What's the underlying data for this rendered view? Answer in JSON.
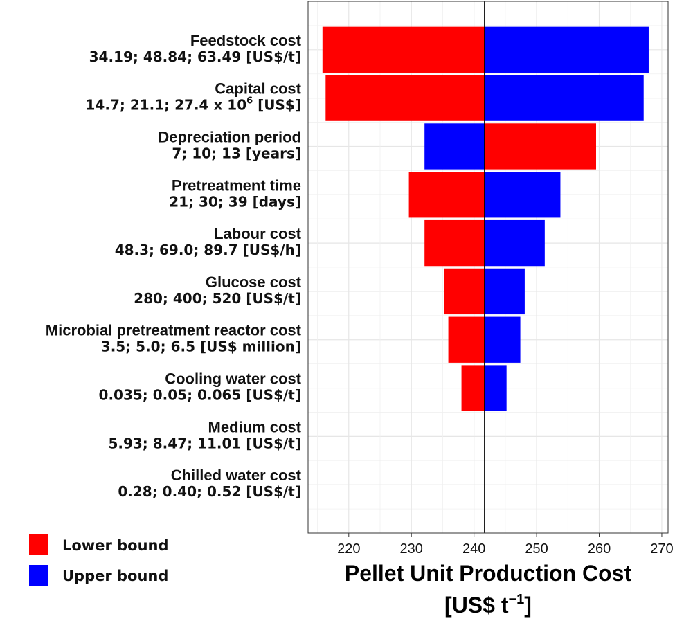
{
  "chart_data": {
    "type": "bar",
    "orientation": "horizontal-tornado",
    "baseline": 241.7,
    "xlim": [
      213.5,
      271
    ],
    "xticks": [
      "220",
      "230",
      "240",
      "250",
      "260",
      "270"
    ],
    "xlabel_line1": "Pellet Unit Production Cost",
    "xlabel_line2": "[US$ t",
    "xlabel_line2_sup": "−1",
    "xlabel_line2_end": "]",
    "grid": true,
    "legend_placement": "bottom-left",
    "series": [
      {
        "name": "Lower bound",
        "color": "#ff0000"
      },
      {
        "name": "Upper bound",
        "color": "#0000ff"
      }
    ],
    "categories": [
      {
        "name": "Feedstock cost",
        "range_label": "34.19; 48.84; 63.49 [US$/t]",
        "bars": [
          {
            "series": "Lower bound",
            "from": 241.7,
            "to": 215.8
          },
          {
            "series": "Upper bound",
            "from": 241.7,
            "to": 267.9
          }
        ]
      },
      {
        "name": "Capital cost",
        "range_label": "14.7; 21.1; 27.4 x 10",
        "range_sup": "6",
        "range_suffix": " [US$]",
        "bars": [
          {
            "series": "Lower bound",
            "from": 241.7,
            "to": 216.3
          },
          {
            "series": "Upper bound",
            "from": 241.7,
            "to": 267.1
          }
        ]
      },
      {
        "name": "Depreciation period",
        "range_label": "7; 10; 13 [years]",
        "bars": [
          {
            "series": "Upper bound",
            "from": 241.7,
            "to": 232.1
          },
          {
            "series": "Lower bound",
            "from": 241.7,
            "to": 259.5
          }
        ]
      },
      {
        "name": "Pretreatment time",
        "range_label": "21; 30; 39 [days]",
        "bars": [
          {
            "series": "Lower bound",
            "from": 241.7,
            "to": 229.6
          },
          {
            "series": "Upper bound",
            "from": 241.7,
            "to": 253.8
          }
        ]
      },
      {
        "name": "Labour cost",
        "range_label": "48.3; 69.0; 89.7 [US$/h]",
        "bars": [
          {
            "series": "Lower bound",
            "from": 241.7,
            "to": 232.1
          },
          {
            "series": "Upper bound",
            "from": 241.7,
            "to": 251.3
          }
        ]
      },
      {
        "name": "Glucose cost",
        "range_label": "280; 400; 520 [US$/t]",
        "bars": [
          {
            "series": "Lower bound",
            "from": 241.7,
            "to": 235.2
          },
          {
            "series": "Upper bound",
            "from": 241.7,
            "to": 248.1
          }
        ]
      },
      {
        "name": "Microbial pretreatment reactor cost",
        "range_label": "3.5; 5.0; 6.5 [US$ million]",
        "bars": [
          {
            "series": "Lower bound",
            "from": 241.7,
            "to": 235.9
          },
          {
            "series": "Upper bound",
            "from": 241.7,
            "to": 247.4
          }
        ]
      },
      {
        "name": "Cooling water cost",
        "range_label": "0.035; 0.05; 0.065 [US$/t]",
        "bars": [
          {
            "series": "Lower bound",
            "from": 241.7,
            "to": 238.0
          },
          {
            "series": "Upper bound",
            "from": 241.7,
            "to": 245.2
          }
        ]
      },
      {
        "name": "Medium cost",
        "range_label": "5.93; 8.47; 11.01 [US$/t]",
        "bars": []
      },
      {
        "name": "Chilled water cost",
        "range_label": "0.28; 0.40; 0.52 [US$/t]",
        "bars": []
      }
    ]
  }
}
